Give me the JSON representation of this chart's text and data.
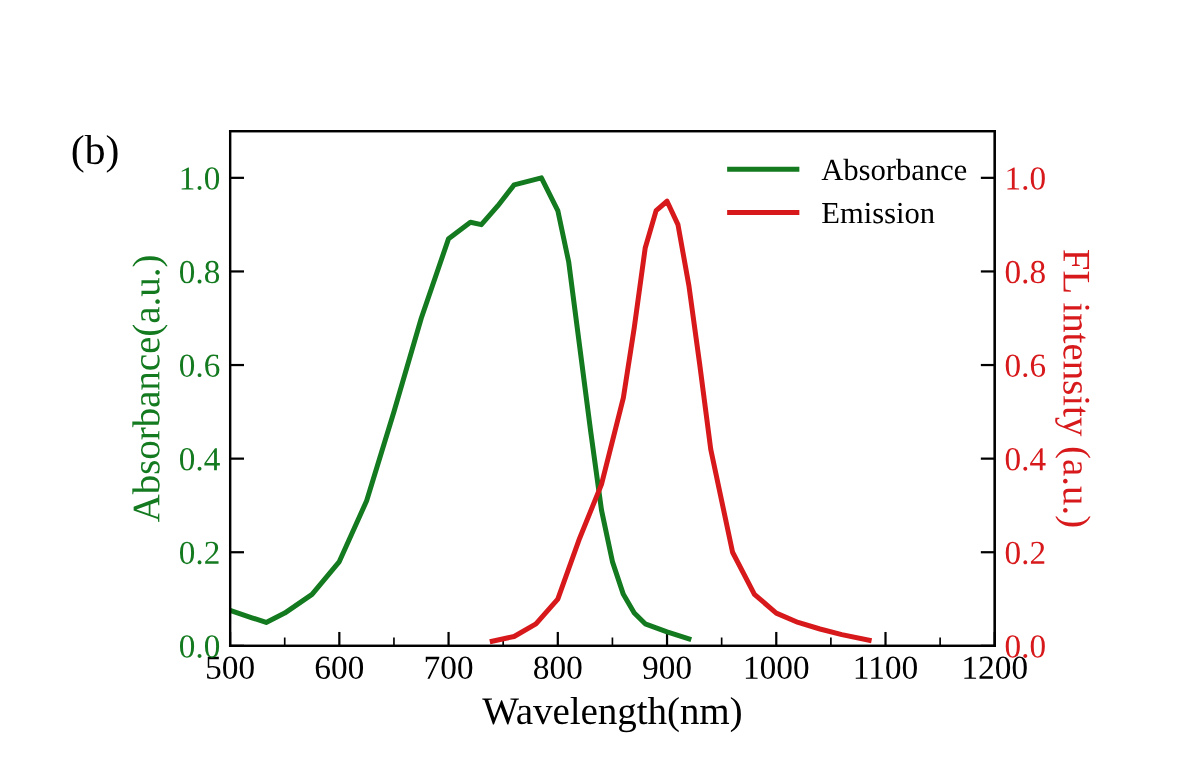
{
  "chart_data": {
    "type": "line",
    "xlabel": "Wavelength(nm)",
    "ylabel": "Absorbance(a.u.)",
    "y2label": "FL intensity (a.u.)",
    "annotations": [
      "(b)"
    ],
    "series": [
      {
        "name": "Absorbance",
        "color": "#137a1f",
        "x": [
          500,
          520,
          533,
          550,
          575,
          600,
          625,
          650,
          675,
          700,
          720,
          730,
          745,
          760,
          785,
          800,
          810,
          820,
          830,
          840,
          850,
          860,
          870,
          880,
          900,
          920
        ],
        "values": [
          0.076,
          0.06,
          0.05,
          0.07,
          0.11,
          0.18,
          0.31,
          0.5,
          0.7,
          0.87,
          0.905,
          0.9,
          0.94,
          0.985,
          1.0,
          0.93,
          0.82,
          0.64,
          0.46,
          0.29,
          0.18,
          0.11,
          0.07,
          0.047,
          0.03,
          0.015
        ]
      },
      {
        "name": "Emission",
        "color": "#d7191c",
        "axis": "y2",
        "x": [
          740,
          760,
          780,
          800,
          820,
          840,
          860,
          870,
          880,
          890,
          900,
          910,
          920,
          930,
          940,
          960,
          980,
          1000,
          1020,
          1040,
          1060,
          1085
        ],
        "values": [
          0.01,
          0.02,
          0.047,
          0.1,
          0.23,
          0.345,
          0.53,
          0.68,
          0.85,
          0.93,
          0.95,
          0.9,
          0.77,
          0.6,
          0.42,
          0.2,
          0.11,
          0.07,
          0.05,
          0.036,
          0.024,
          0.012
        ]
      }
    ],
    "xlim": [
      500,
      1200
    ],
    "xticks": [
      500,
      {
        "value": 550,
        "label": null
      },
      600,
      {
        "value": 650,
        "label": null
      },
      700,
      {
        "value": 750,
        "label": null
      },
      800,
      {
        "value": 850,
        "label": null
      },
      900,
      {
        "value": 950,
        "label": null
      },
      1000,
      {
        "value": 1050,
        "label": null
      },
      1100,
      {
        "value": 1150,
        "label": null
      },
      1200
    ],
    "ylim": [
      0,
      1.1
    ],
    "yticks": [
      {
        "value": 0,
        "label": "0.0"
      },
      0.2,
      0.4,
      0.6,
      0.8,
      {
        "value": 1,
        "label": "1.0"
      }
    ],
    "y2lim": [
      0,
      1.1
    ],
    "y2ticks": [
      {
        "value": 0,
        "label": "0.0"
      },
      0.2,
      0.4,
      0.6,
      0.8,
      {
        "value": 1,
        "label": "1.0"
      }
    ],
    "legend": "top right",
    "grid": false,
    "marker": "none",
    "line_style": "solid"
  }
}
